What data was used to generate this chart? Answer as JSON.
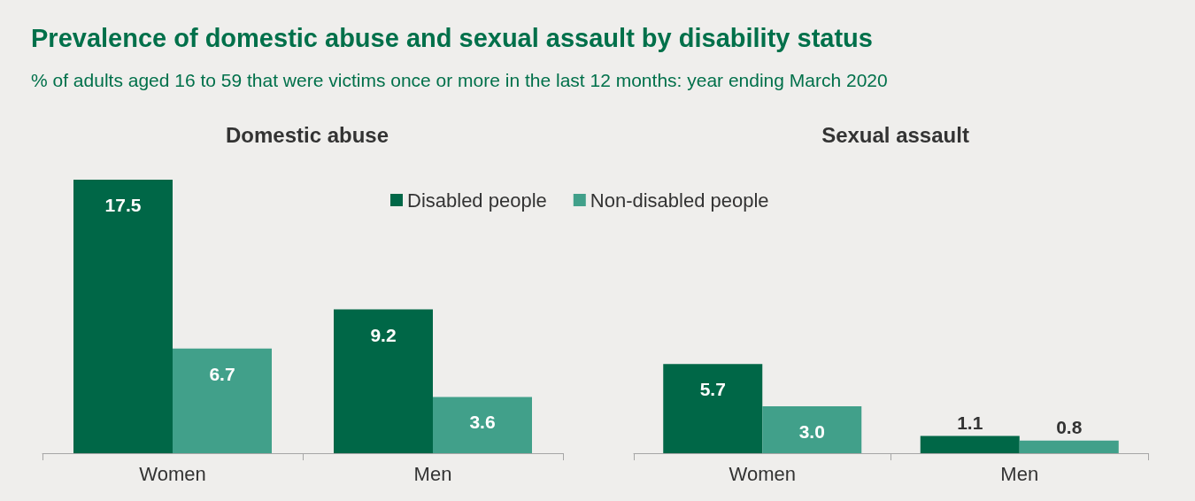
{
  "chart_data": [
    {
      "type": "bar",
      "title": "Domestic abuse",
      "annotations": [
        "Prevalence of domestic abuse and sexual assault by disability status",
        "% of adults aged 16 to 59 that were victims once or more in the last 12 months: year ending March 2020"
      ],
      "categories": [
        "Women",
        "Men"
      ],
      "series": [
        {
          "name": "Disabled people",
          "color": "#006747",
          "values": [
            17.5,
            9.2
          ]
        },
        {
          "name": "Non-disabled people",
          "color": "#41a08a",
          "values": [
            6.7,
            3.6
          ]
        }
      ],
      "data_labels": true,
      "legend": "top right",
      "grid": false
    },
    {
      "type": "bar",
      "title": "Sexual assault",
      "categories": [
        "Women",
        "Men"
      ],
      "series": [
        {
          "color": "#006747",
          "values": [
            5.7,
            1.1
          ],
          "value_labels": [
            "5.7",
            "1.1"
          ]
        },
        {
          "color": "#41a08a",
          "values": [
            3.0,
            0.8
          ],
          "value_labels": [
            "3.0",
            "0.8"
          ]
        }
      ],
      "legend": false,
      "grid": false
    }
  ]
}
